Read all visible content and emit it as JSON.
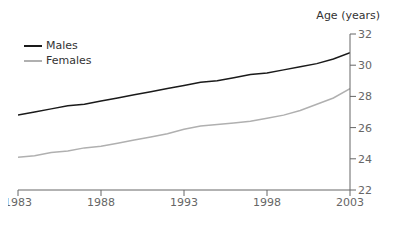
{
  "chart_data": {
    "type": "line",
    "x": [
      1983,
      1984,
      1985,
      1986,
      1987,
      1988,
      1989,
      1990,
      1991,
      1992,
      1993,
      1994,
      1995,
      1996,
      1997,
      1998,
      1999,
      2000,
      2001,
      2002,
      2003
    ],
    "series": [
      {
        "name": "Males",
        "color": "#1a1a1a",
        "values": [
          26.8,
          27.0,
          27.2,
          27.4,
          27.5,
          27.7,
          27.9,
          28.1,
          28.3,
          28.5,
          28.7,
          28.9,
          29.0,
          29.2,
          29.4,
          29.5,
          29.7,
          29.9,
          30.1,
          30.4,
          30.8
        ]
      },
      {
        "name": "Females",
        "color": "#b0b0b0",
        "values": [
          24.1,
          24.2,
          24.4,
          24.5,
          24.7,
          24.8,
          25.0,
          25.2,
          25.4,
          25.6,
          25.9,
          26.1,
          26.2,
          26.3,
          26.4,
          26.6,
          26.8,
          27.1,
          27.5,
          27.9,
          28.5
        ]
      }
    ],
    "ylabel": "Age (years)",
    "xlim": [
      1983,
      2003
    ],
    "xticks": [
      1983,
      1988,
      1993,
      1998,
      2003
    ],
    "ylim": [
      22,
      32
    ],
    "yticks": [
      22,
      24,
      26,
      28,
      30,
      32
    ],
    "legend": "upper left",
    "grid": false
  }
}
